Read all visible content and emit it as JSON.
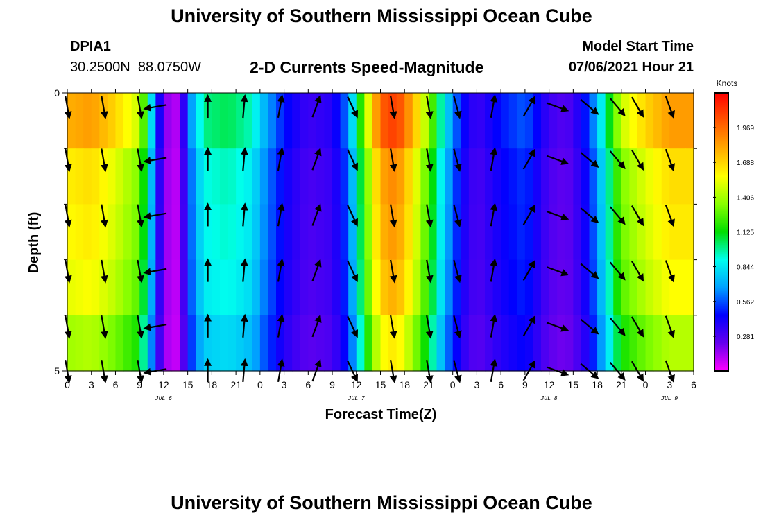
{
  "page": {
    "title": "University of Southern Mississippi Ocean Cube",
    "footer_title": "University of Southern Mississippi Ocean Cube"
  },
  "header": {
    "station_id": "DPIA1",
    "station_coords": "30.2500N  88.0750W",
    "subtitle": "2-D Currents Speed-Magnitude",
    "model_start_label": "Model Start Time",
    "model_start_value": "07/06/2021 Hour 21"
  },
  "chart_data": {
    "type": "heatmap",
    "title": "2-D Currents Speed-Magnitude",
    "xlabel": "Forecast Time(Z)",
    "ylabel": "Depth (ft)",
    "x_hours_range": [
      0,
      78
    ],
    "ylim": [
      0,
      5
    ],
    "y_ticks": [
      "0",
      "5"
    ],
    "x_tick_labels": [
      "0",
      "3",
      "6",
      "9",
      "12",
      "15",
      "18",
      "21",
      "0",
      "3",
      "6",
      "9",
      "12",
      "15",
      "18",
      "21",
      "0",
      "3",
      "6",
      "9",
      "12",
      "15",
      "18",
      "21",
      "0",
      "3",
      "6"
    ],
    "date_labels": [
      {
        "hour": 12,
        "label": "JUL 6"
      },
      {
        "hour": 36,
        "label": "JUL 7"
      },
      {
        "hour": 60,
        "label": "JUL 8"
      },
      {
        "hour": 75,
        "label": "JUL 9"
      }
    ],
    "colorbar": {
      "units": "Knots",
      "tick_labels": [
        "0.281",
        "0.562",
        "0.844",
        "1.125",
        "1.406",
        "1.688",
        "1.969"
      ],
      "tick_values": [
        0.281,
        0.562,
        0.844,
        1.125,
        1.406,
        1.688,
        1.969
      ],
      "range": [
        0,
        2.25
      ],
      "colors": [
        "#ff00ff",
        "#6600ee",
        "#0000ff",
        "#00a0ff",
        "#00ffee",
        "#00dd00",
        "#88ff00",
        "#ffff00",
        "#ffaa00",
        "#ff5500",
        "#ff0000"
      ]
    },
    "speed_profile_hours": [
      0,
      3,
      6,
      9,
      10,
      11,
      12,
      13,
      14,
      15,
      17,
      20,
      23,
      24,
      27,
      30,
      33,
      35,
      37,
      39,
      41,
      43,
      45,
      47,
      49,
      51,
      54,
      57,
      60,
      62,
      63,
      65,
      66,
      69,
      72,
      75,
      78
    ],
    "speed_profile_knots": [
      1.7,
      1.75,
      1.6,
      1.4,
      1.0,
      0.55,
      0.2,
      0.1,
      0.12,
      0.55,
      0.95,
      1.0,
      0.9,
      0.75,
      0.45,
      0.3,
      0.35,
      0.6,
      1.3,
      1.9,
      2.0,
      1.7,
      1.3,
      0.8,
      0.45,
      0.3,
      0.45,
      0.55,
      0.3,
      0.25,
      0.3,
      0.5,
      0.7,
      1.4,
      1.6,
      1.75,
      1.75
    ],
    "depth_rows": [
      {
        "factor": 1.05,
        "offset": 0.0
      },
      {
        "factor": 0.95,
        "offset": 0.0
      },
      {
        "factor": 0.93,
        "offset": 0.0
      },
      {
        "factor": 0.9,
        "offset": 0.0
      },
      {
        "factor": 0.82,
        "offset": 0.0
      }
    ],
    "vector_hours": [
      0,
      4.5,
      9,
      11,
      17.5,
      22,
      26.5,
      31,
      35.5,
      40.5,
      45,
      48.5,
      53,
      57.5,
      61,
      65,
      68.5,
      71,
      75
    ],
    "vector_depths": [
      0.25,
      1.2,
      2.2,
      3.2,
      4.2,
      5.0
    ],
    "vector_directions_deg": [
      170,
      170,
      170,
      260,
      0,
      5,
      10,
      20,
      155,
      170,
      170,
      165,
      10,
      30,
      110,
      130,
      140,
      150,
      160
    ]
  }
}
